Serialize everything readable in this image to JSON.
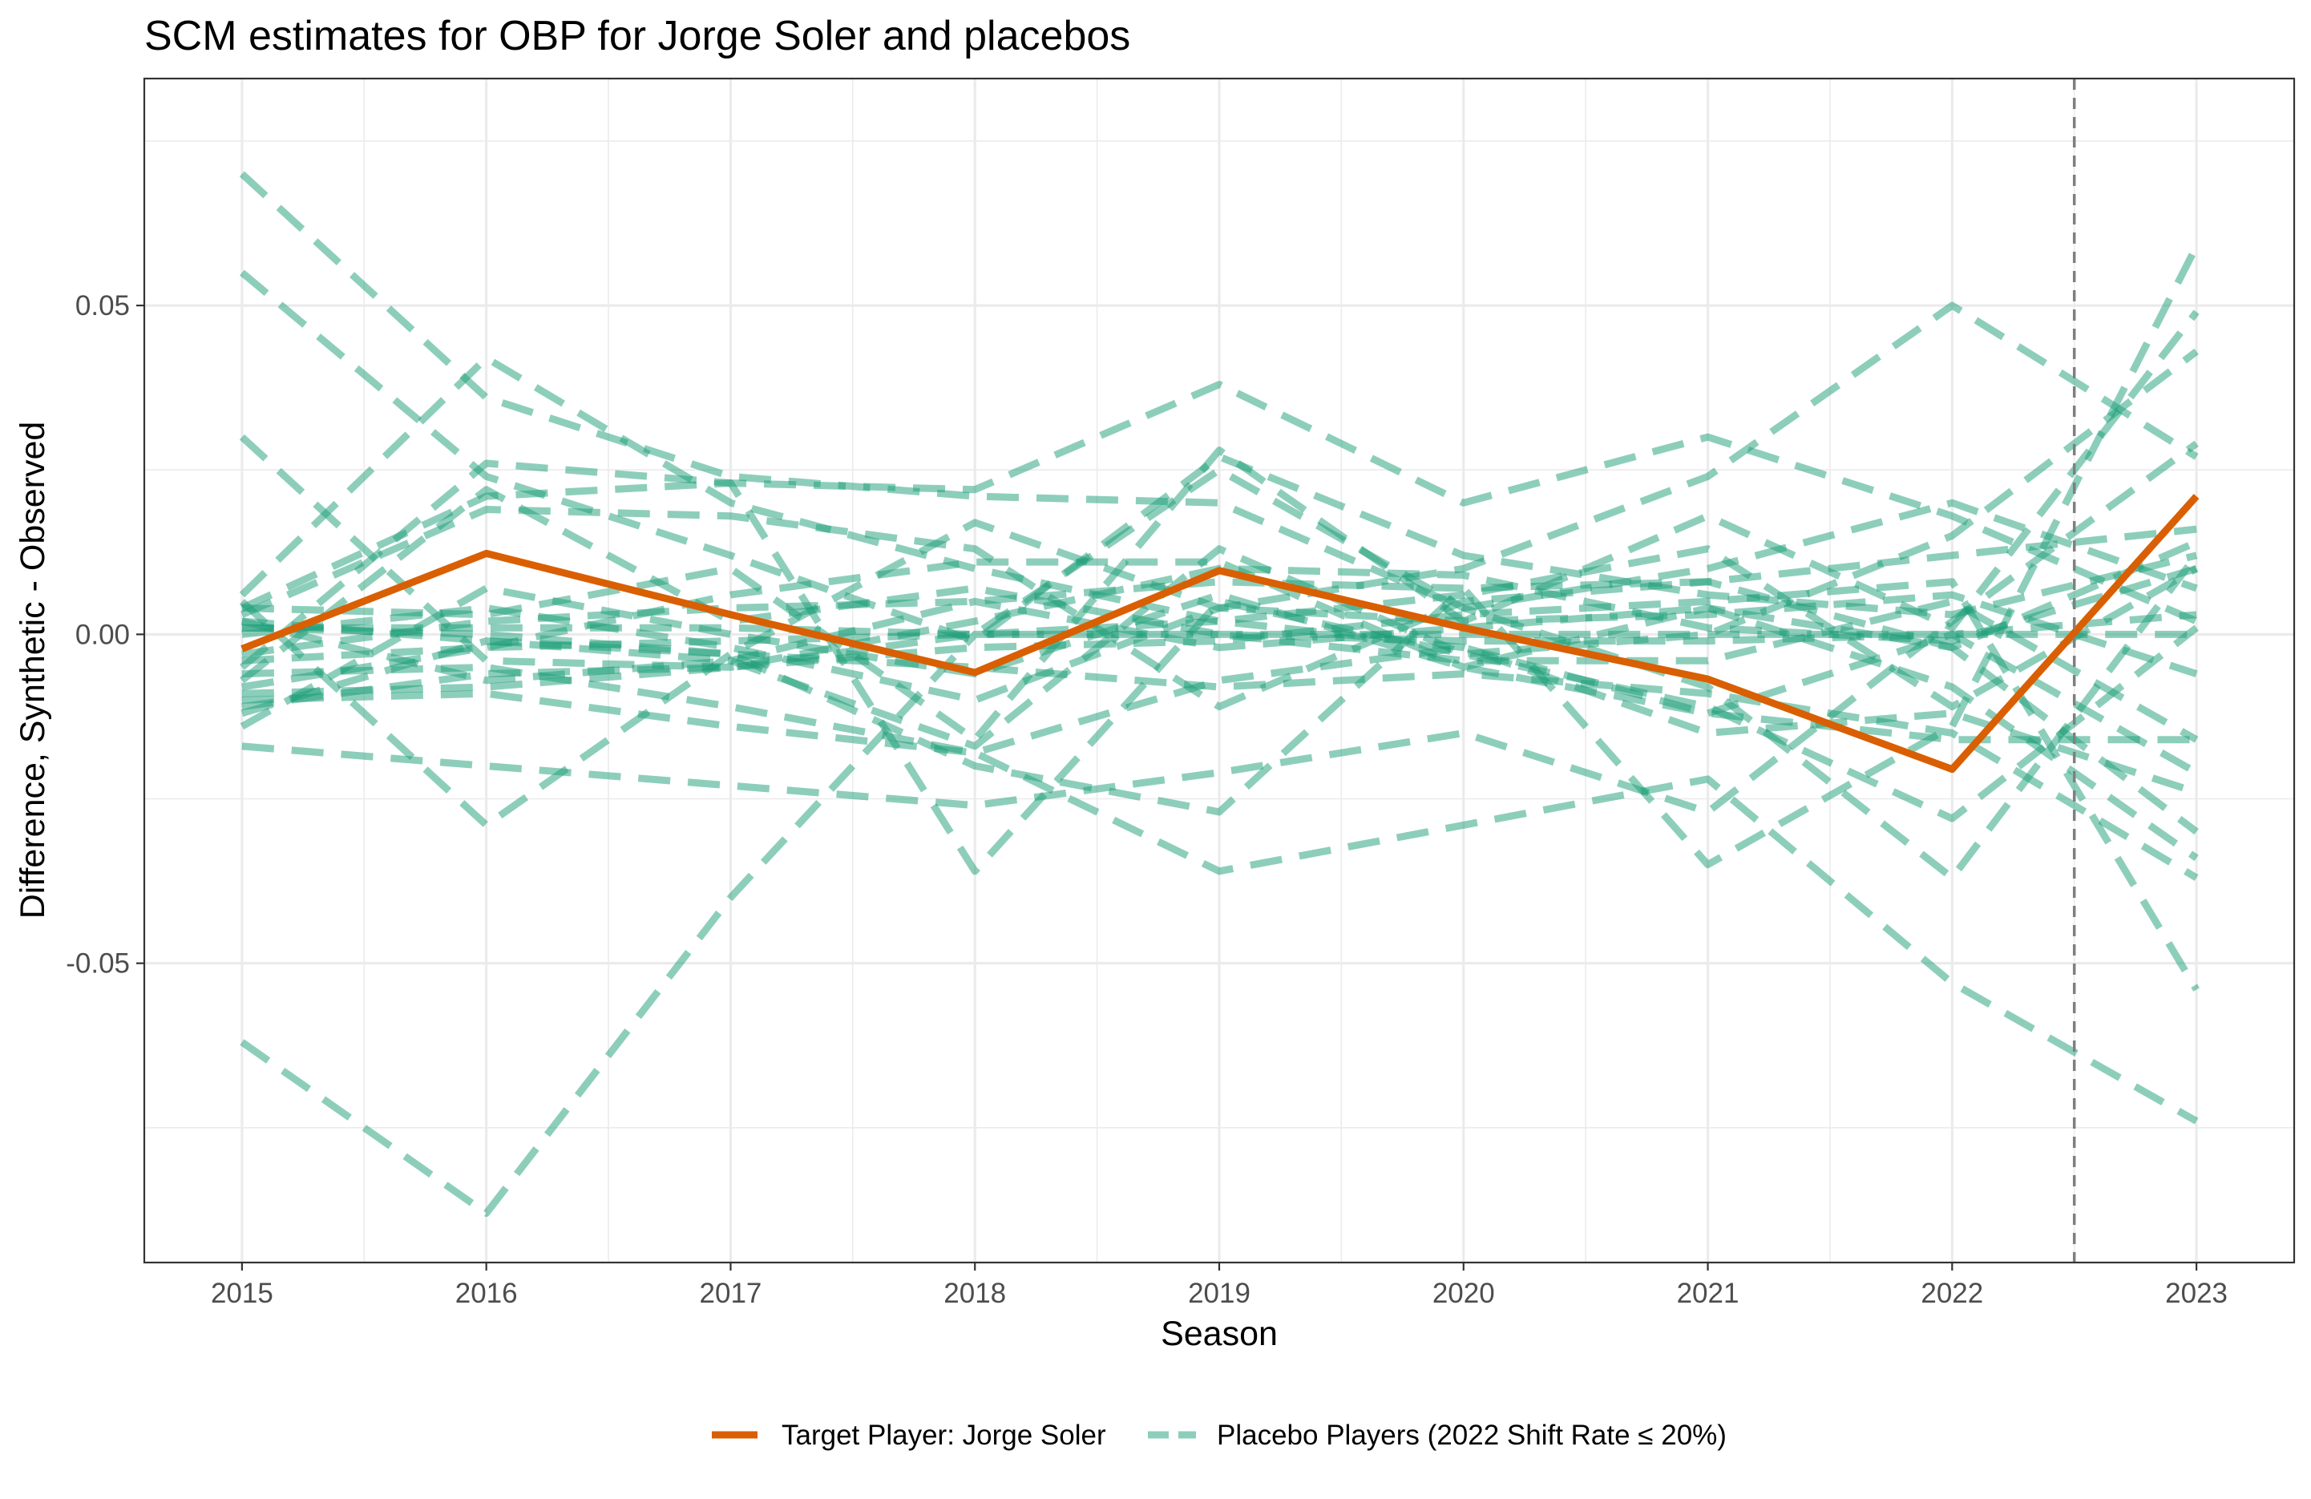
{
  "chart_data": {
    "type": "line",
    "title": "SCM estimates for OBP for Jorge Soler and placebos",
    "xlabel": "Season",
    "ylabel": "Difference, Synthetic - Observed",
    "x": [
      2015,
      2016,
      2017,
      2018,
      2019,
      2020,
      2021,
      2022,
      2023
    ],
    "xlim": [
      2014.6,
      2023.4
    ],
    "ylim": [
      -0.0955,
      0.0845
    ],
    "x_ticks": [
      "2015",
      "2016",
      "2017",
      "2018",
      "2019",
      "2020",
      "2021",
      "2022",
      "2023"
    ],
    "y_ticks": [
      {
        "value": -0.05,
        "label": "-0.05"
      },
      {
        "value": 0.0,
        "label": "0.00"
      },
      {
        "value": 0.05,
        "label": "0.05"
      }
    ],
    "y_minor_ticks": [
      -0.075,
      -0.025,
      0.025,
      0.075
    ],
    "grid": true,
    "treatment_line_x": 2022.5,
    "legend_position": "bottom",
    "colors": {
      "target": "#d95f02",
      "placebo": "#1b9e77",
      "grid": "#ebebeb",
      "treatment_line": "#7f7f7f"
    },
    "target_series": {
      "name": "Target Player: Jorge Soler",
      "values": [
        -0.0022,
        0.0123,
        0.003,
        -0.0058,
        0.0097,
        0.001,
        -0.0068,
        -0.0205,
        0.021
      ]
    },
    "placebo_legend_label": "Placebo Players (2022 Shift Rate ≤ 20%)",
    "placebo_series": [
      [
        0.07,
        0.036,
        0.024,
        0.021,
        0.02,
        0.004,
        0.01,
        0.02,
        0.007
      ],
      [
        0.055,
        0.024,
        0.012,
        -0.001,
        0.027,
        0.012,
        0.006,
        0.003,
        0.012
      ],
      [
        0.03,
        -0.004,
        -0.005,
        0.002,
        0.01,
        0.009,
        0.001,
        -0.001,
        0.01
      ],
      [
        0.006,
        0.042,
        0.02,
        0.01,
        0.002,
        -0.002,
        -0.015,
        -0.012,
        -0.024
      ],
      [
        0.005,
        -0.029,
        -0.003,
        0.017,
        0.004,
        0.002,
        0.018,
        0.001,
        0.049
      ],
      [
        0.004,
        0.021,
        0.023,
        0.022,
        0.038,
        0.02,
        0.03,
        0.018,
        0.002
      ],
      [
        0.004,
        0.003,
        0.01,
        -0.016,
        0.028,
        0.002,
        0.003,
        0.006,
        -0.006
      ],
      [
        0.003,
        0.019,
        0.018,
        0.013,
        -0.011,
        0.005,
        0.008,
        -0.002,
        0.014
      ],
      [
        0.002,
        -0.007,
        -0.004,
        -0.017,
        0.013,
        -0.003,
        -0.011,
        -0.028,
        0.001
      ],
      [
        0.0,
        0.004,
        -0.002,
        -0.01,
        0.004,
        0.01,
        0.024,
        0.05,
        0.027
      ],
      [
        -0.005,
        0.026,
        0.023,
        -0.036,
        0.005,
        -0.003,
        0.0,
        0.015,
        0.043
      ],
      [
        -0.007,
        0.022,
        0.002,
        0.007,
        0.0,
        -0.004,
        -0.004,
        0.005,
        -0.016
      ],
      [
        -0.009,
        -0.008,
        -0.005,
        0.0,
        0.025,
        0.004,
        -0.008,
        -0.037,
        0.012
      ],
      [
        -0.01,
        -0.009,
        -0.014,
        -0.018,
        -0.007,
        -0.002,
        -0.012,
        0.0,
        -0.021
      ],
      [
        -0.012,
        -0.001,
        -0.004,
        0.005,
        -0.002,
        0.001,
        0.004,
        -0.008,
        -0.034
      ],
      [
        -0.014,
        0.007,
        0.0,
        -0.006,
        0.006,
        -0.005,
        -0.012,
        -0.016,
        -0.016
      ],
      [
        -0.017,
        -0.02,
        -0.023,
        -0.026,
        -0.021,
        -0.015,
        -0.027,
        0.002,
        0.029
      ],
      [
        -0.062,
        -0.088,
        -0.04,
        0.0,
        0.0,
        0.0,
        0.0,
        0.0,
        0.0
      ],
      [
        0.001,
        0.0,
        -0.003,
        -0.02,
        -0.027,
        0.007,
        -0.035,
        -0.014,
        0.059
      ],
      [
        -0.006,
        -0.005,
        -0.011,
        -0.018,
        -0.036,
        -0.029,
        -0.022,
        -0.053,
        -0.074
      ],
      [
        -0.004,
        -0.002,
        -0.001,
        0.0,
        0.002,
        0.006,
        0.013,
        -0.011,
        0.01
      ],
      [
        -0.011,
        -0.006,
        -0.005,
        -0.002,
        -0.001,
        0.003,
        0.005,
        0.008,
        -0.054
      ],
      [
        0.001,
        0.001,
        0.001,
        0.0,
        0.0,
        -0.001,
        -0.001,
        0.0,
        0.003
      ],
      [
        -0.003,
        0.002,
        0.004,
        0.005,
        0.008,
        0.007,
        0.008,
        0.012,
        0.016
      ],
      [
        0.002,
        -0.001,
        -0.003,
        -0.005,
        -0.008,
        -0.006,
        -0.009,
        -0.015,
        -0.037
      ],
      [
        -0.008,
        -0.002,
        0.006,
        0.011,
        0.011,
        -0.005,
        0.004,
        -0.002,
        -0.03
      ]
    ]
  }
}
